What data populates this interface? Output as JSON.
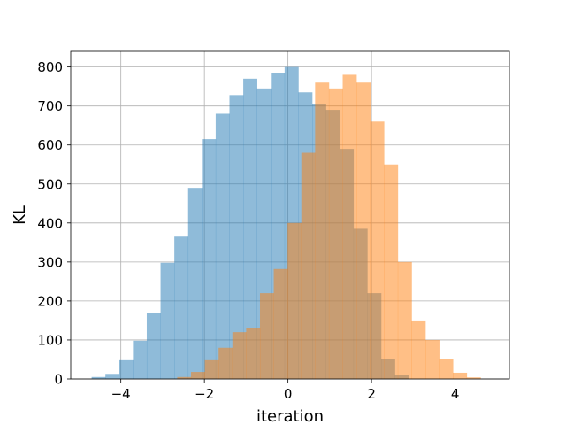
{
  "chart_data": {
    "type": "bar",
    "title": "",
    "xlabel": "iteration",
    "ylabel": "KL",
    "xlim": [
      -5.2,
      5.3
    ],
    "ylim": [
      0,
      840
    ],
    "grid": true,
    "x_ticks": [
      -4,
      -2,
      0,
      2,
      4
    ],
    "x_tick_labels": [
      "−4",
      "−2",
      "0",
      "2",
      "4"
    ],
    "y_ticks": [
      0,
      100,
      200,
      300,
      400,
      500,
      600,
      700,
      800
    ],
    "y_tick_labels": [
      "0",
      "100",
      "200",
      "300",
      "400",
      "500",
      "600",
      "700",
      "800"
    ],
    "series": [
      {
        "color": "#1f77b4",
        "opacity": 0.5,
        "bin_width": 0.33,
        "bin_starts": [
          -4.7,
          -4.37,
          -4.04,
          -3.71,
          -3.38,
          -3.05,
          -2.72,
          -2.39,
          -2.06,
          -1.73,
          -1.4,
          -1.07,
          -0.74,
          -0.41,
          -0.08,
          0.25,
          0.58,
          0.91,
          1.24,
          1.57,
          1.9,
          2.23,
          2.56
        ],
        "counts": [
          5,
          13,
          48,
          98,
          170,
          298,
          365,
          490,
          615,
          680,
          728,
          770,
          745,
          785,
          800,
          735,
          705,
          690,
          590,
          385,
          220,
          50,
          10
        ]
      },
      {
        "color": "#ff7f0e",
        "opacity": 0.5,
        "bin_width": 0.33,
        "bin_starts": [
          -2.65,
          -2.32,
          -1.99,
          -1.66,
          -1.33,
          -1.0,
          -0.67,
          -0.34,
          -0.01,
          0.32,
          0.65,
          0.98,
          1.31,
          1.64,
          1.97,
          2.3,
          2.63,
          2.96,
          3.29,
          3.62,
          3.95,
          4.28
        ],
        "counts": [
          5,
          18,
          48,
          80,
          120,
          130,
          220,
          282,
          400,
          580,
          760,
          745,
          780,
          760,
          660,
          550,
          300,
          150,
          100,
          50,
          16,
          4
        ]
      }
    ]
  }
}
